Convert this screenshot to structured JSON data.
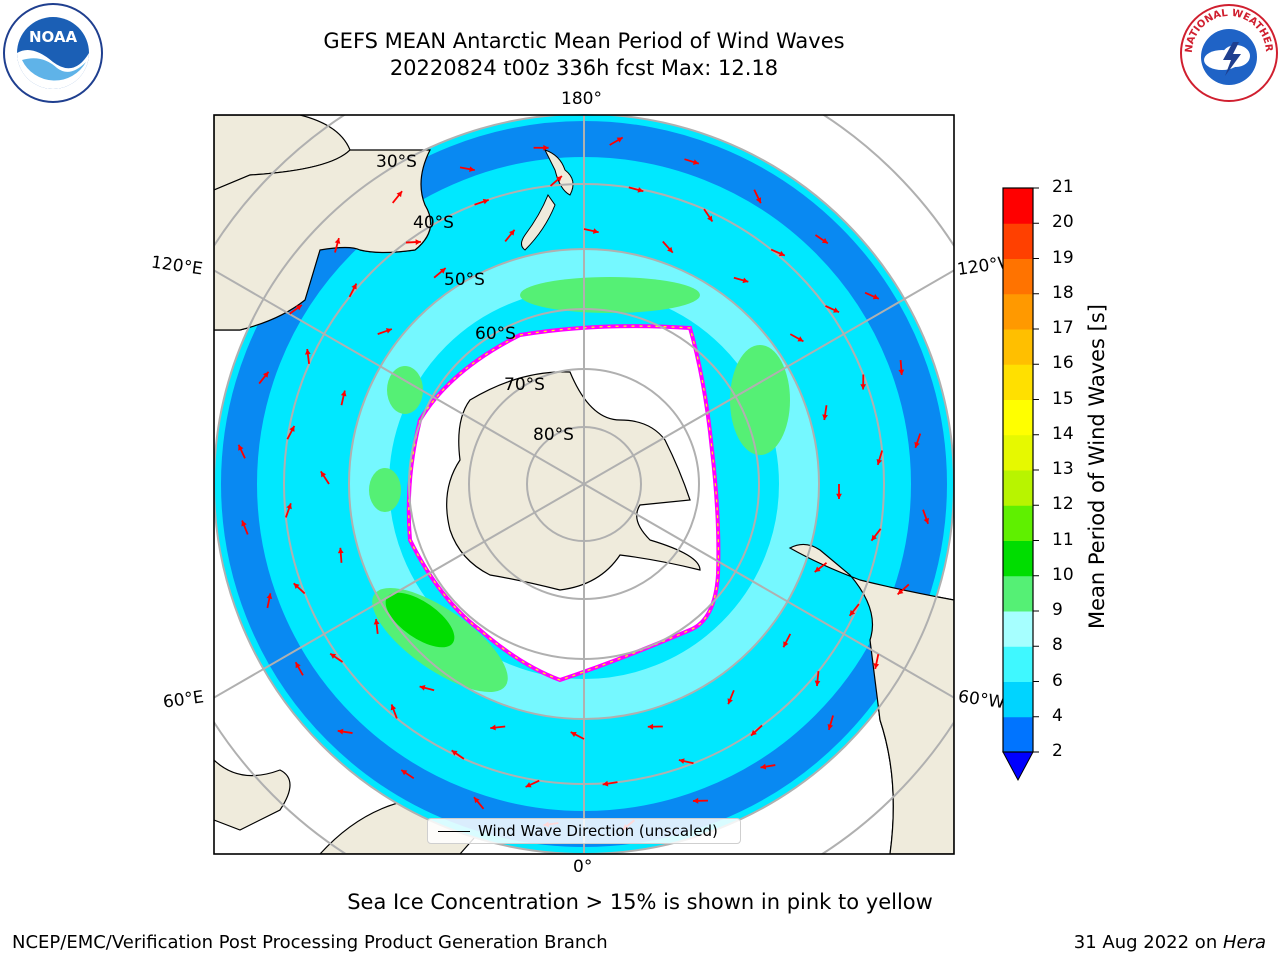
{
  "header": {
    "title_line1": "GEFS MEAN Antarctic Mean Period of Wind Waves",
    "title_line2": "20220824 t00z 336h fcst   Max: 12.18"
  },
  "logos": {
    "left": "NOAA",
    "right": "NATIONAL WEATHER SERVICE"
  },
  "map": {
    "projection": "south polar stereographic",
    "longitude_labels": {
      "top": "180°",
      "bottom": "0°",
      "left_upper": "120°E",
      "left_lower": "60°E",
      "right_upper": "120°W",
      "right_lower": "60°W"
    },
    "latitude_labels": [
      "30°S",
      "40°S",
      "50°S",
      "60°S",
      "70°S",
      "80°S"
    ],
    "legend": "Wind Wave Direction (unscaled)",
    "arrow_color": "#ff0000",
    "land_color": "#efebdc",
    "ice_edge_colors": [
      "#ff00ff",
      "#ffff00"
    ]
  },
  "colorbar": {
    "label": "Mean Period of Wind Waves [s]",
    "ticks": [
      "2",
      "4",
      "6",
      "8",
      "9",
      "10",
      "11",
      "12",
      "13",
      "14",
      "15",
      "16",
      "17",
      "18",
      "19",
      "20",
      "21"
    ],
    "colors": [
      "#0074ff",
      "#00d4ff",
      "#3ff8ff",
      "#a6ffff",
      "#55f075",
      "#00dd00",
      "#5ff000",
      "#b8f400",
      "#e6f900",
      "#ffff00",
      "#ffe000",
      "#ffbf00",
      "#ff9900",
      "#ff7300",
      "#ff4000",
      "#ff0000"
    ],
    "extend_color": "#0000ff"
  },
  "caption": "Sea Ice Concentration > 15% is shown in pink to yellow",
  "footer": {
    "left": "NCEP/EMC/Verification Post Processing Product Generation Branch",
    "right_date": "31 Aug 2022 on ",
    "right_machine": "Hera"
  }
}
